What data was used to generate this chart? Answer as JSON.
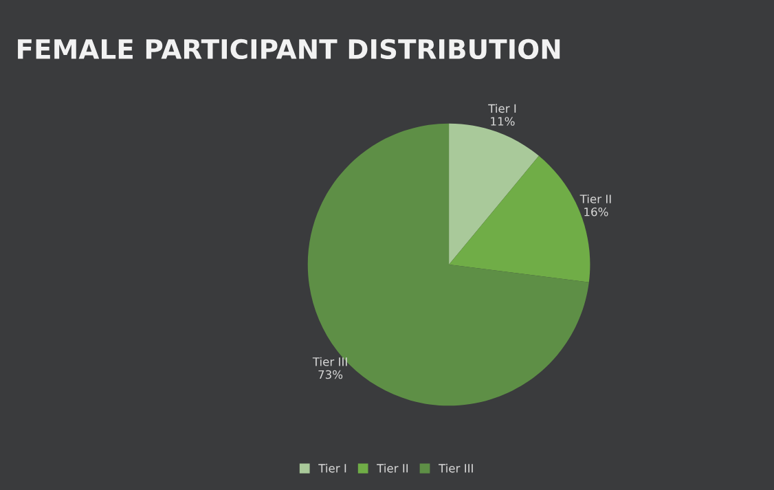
{
  "chart_data": {
    "type": "pie",
    "title": "FEMALE PARTICIPANT DISTRIBUTION",
    "categories": [
      "Tier I",
      "Tier II",
      "Tier III"
    ],
    "values": [
      11,
      16,
      73
    ],
    "value_labels": [
      "11%",
      "16%",
      "73%"
    ],
    "colors": [
      "#a9c99a",
      "#70ad47",
      "#5e8f46"
    ],
    "legend": "bottom"
  }
}
